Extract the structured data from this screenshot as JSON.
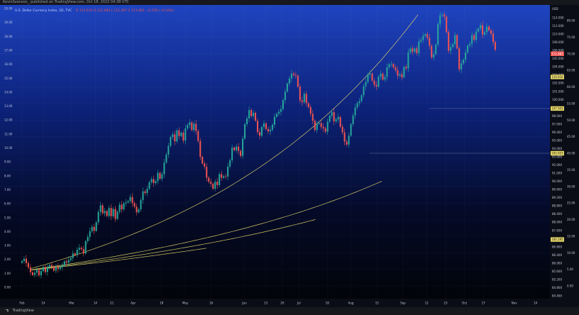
{
  "header": {
    "published_line": "KevinSvenson_ published on TradingView.com, Oct 18, 2022 04:38 UTC"
  },
  "footer": {
    "brand": "TradingView"
  },
  "colors": {
    "up": "#26a69a",
    "down": "#ef5350",
    "fit_curve": "#e7d96a",
    "bg_top": "#1f44c0",
    "bg_bottom": "#020409"
  },
  "chart_data": {
    "type": "candlestick",
    "title": "U.S. Dollar Currency Index, 1D, TVC",
    "ohlc_label": "O 112.015  H 112.083  L 111.697  C 111.881  −0.378 (−0.34%)",
    "left_axis_ticks": [
      "20.00",
      "19.00",
      "18.00",
      "17.00",
      "16.00",
      "15.00",
      "14.00",
      "13.00",
      "12.00",
      "11.00",
      "10.00",
      "9.00",
      "8.00",
      "7.00",
      "6.00",
      "5.00",
      "4.00",
      "3.00",
      "2.00",
      "1.00",
      "0.00"
    ],
    "left_axis_range": [
      0,
      20
    ],
    "right_axis_label": "USD",
    "right_axis_ticks": [
      "114.000",
      "112.000",
      "110.000",
      "108.000",
      "106.000",
      "105.000",
      "104.000",
      "103.000",
      "102.000",
      "101.000",
      "100.000",
      "99.000",
      "98.000",
      "97.000",
      "96.000",
      "95.000",
      "94.000",
      "93.000",
      "92.000",
      "91.000",
      "90.000",
      "89.600",
      "89.200",
      "88.800",
      "88.400",
      "88.000",
      "87.600",
      "87.200",
      "86.800",
      "86.400",
      "86.000",
      "85.600",
      "85.200",
      "84.800",
      "84.400"
    ],
    "pct_axis_ticks": [
      "80.00",
      "75.00",
      "70.00",
      "65.00",
      "60.00",
      "55.00",
      "50.00",
      "45.00",
      "40.00",
      "35.00",
      "30.00",
      "25.00",
      "20.00",
      "15.00",
      "10.00",
      "5.00",
      "0.00"
    ],
    "pct_axis_range": [
      0,
      80
    ],
    "x_labels": [
      {
        "label": "Feb",
        "t": 0.0
      },
      {
        "label": "14",
        "t": 0.045
      },
      {
        "label": "Mar",
        "t": 0.105
      },
      {
        "label": "14",
        "t": 0.155
      },
      {
        "label": "21",
        "t": 0.19
      },
      {
        "label": "Apr",
        "t": 0.235
      },
      {
        "label": "18",
        "t": 0.295
      },
      {
        "label": "May",
        "t": 0.345
      },
      {
        "label": "16",
        "t": 0.4
      },
      {
        "label": "Jun",
        "t": 0.47
      },
      {
        "label": "13",
        "t": 0.515
      },
      {
        "label": "20",
        "t": 0.55
      },
      {
        "label": "Jul",
        "t": 0.585
      },
      {
        "label": "18",
        "t": 0.645
      },
      {
        "label": "Aug",
        "t": 0.695
      },
      {
        "label": "15",
        "t": 0.75
      },
      {
        "label": "Sep",
        "t": 0.805
      },
      {
        "label": "12",
        "t": 0.855
      },
      {
        "label": "23",
        "t": 0.895
      },
      {
        "label": "Oct",
        "t": 0.935
      },
      {
        "label": "17",
        "t": 0.975
      }
    ],
    "x_labels_after": [
      {
        "label": "Nov",
        "t": 1.04
      },
      {
        "label": "14",
        "t": 1.085
      }
    ],
    "price_labels": [
      {
        "text": "111.881",
        "pct": 70.0,
        "color": "#ef5350"
      },
      {
        "text": "110.616",
        "pct": 63.0,
        "color": "#e7d96a"
      },
      {
        "text": "107.943",
        "pct": 53.5,
        "color": "#e7d96a"
      },
      {
        "text": "105.653",
        "pct": 40.0,
        "color": "#e7d96a"
      },
      {
        "text": "100.295",
        "pct": 14.0,
        "color": "#e7d96a"
      }
    ],
    "horizontal_lines": [
      {
        "pct": 53.5,
        "from_t": 0.86
      },
      {
        "pct": 40.0,
        "from_t": 0.735
      }
    ],
    "closes_pct": [
      7.5,
      8.2,
      6.9,
      5.6,
      4.1,
      3.3,
      4.0,
      4.8,
      3.2,
      4.5,
      5.7,
      4.2,
      5.5,
      6.3,
      5.9,
      4.6,
      5.8,
      5.1,
      5.6,
      6.2,
      7.4,
      7.0,
      7.8,
      8.4,
      9.8,
      9.3,
      10.9,
      11.5,
      11.1,
      9.8,
      13.5,
      14.8,
      16.5,
      17.8,
      16.6,
      19.2,
      22.3,
      24.3,
      21.9,
      22.6,
      21.1,
      23.5,
      21.0,
      23.2,
      20.2,
      22.4,
      24.5,
      23.1,
      24.9,
      25.2,
      25.6,
      26.8,
      25.0,
      23.9,
      22.2,
      23.1,
      25.9,
      28.5,
      28.0,
      29.3,
      31.3,
      32.2,
      31.0,
      31.6,
      34.1,
      32.3,
      33.7,
      37.2,
      39.6,
      42.2,
      44.9,
      45.7,
      43.6,
      46.9,
      45.2,
      46.2,
      43.8,
      47.5,
      48.5,
      49.3,
      47.0,
      48.9,
      46.7,
      43.7,
      38.9,
      36.9,
      35.9,
      32.6,
      31.4,
      30.8,
      29.3,
      31.4,
      30.4,
      33.7,
      32.6,
      33.1,
      33.0,
      36.0,
      37.9,
      41.7,
      40.9,
      42.0,
      40.7,
      39.2,
      44.4,
      48.8,
      50.5,
      53.0,
      51.2,
      52.2,
      49.8,
      46.4,
      45.3,
      47.9,
      49.0,
      47.3,
      46.6,
      47.1,
      48.6,
      51.0,
      51.9,
      52.5,
      53.3,
      56.0,
      58.6,
      61.0,
      62.5,
      64.0,
      63.6,
      63.4,
      60.1,
      55.9,
      55.4,
      57.9,
      55.1,
      53.9,
      51.9,
      49.8,
      47.0,
      48.8,
      49.1,
      47.9,
      47.5,
      46.5,
      49.5,
      51.3,
      52.4,
      49.6,
      50.2,
      50.9,
      48.0,
      46.3,
      43.5,
      42.6,
      45.3,
      48.8,
      51.4,
      53.8,
      55.1,
      55.7,
      57.5,
      60.2,
      61.5,
      63.7,
      64.0,
      61.9,
      60.6,
      60.1,
      63.1,
      64.0,
      62.2,
      63.0,
      65.9,
      66.8,
      66.9,
      65.9,
      65.1,
      63.4,
      63.8,
      62.9,
      66.0,
      65.6,
      70.4,
      71.6,
      70.6,
      71.6,
      70.2,
      73.7,
      74.2,
      75.4,
      75.9,
      74.8,
      72.4,
      68.9,
      69.9,
      72.8,
      79.0,
      81.6,
      81.8,
      81.2,
      76.5,
      70.9,
      72.0,
      72.9,
      75.6,
      71.6,
      65.3,
      67.1,
      68.2,
      70.4,
      72.5,
      73.0,
      75.6,
      74.2,
      76.7,
      77.6,
      78.6,
      75.8,
      76.5,
      78.2,
      77.0,
      76.1,
      73.5,
      71.2
    ],
    "fit_curves": [
      {
        "k": 13,
        "end_t": 1.07
      },
      {
        "k": 4.5,
        "end_t": 0.76
      },
      {
        "k": 3.2,
        "end_t": 0.62
      },
      {
        "k": 2.2,
        "end_t": 0.39
      }
    ]
  }
}
